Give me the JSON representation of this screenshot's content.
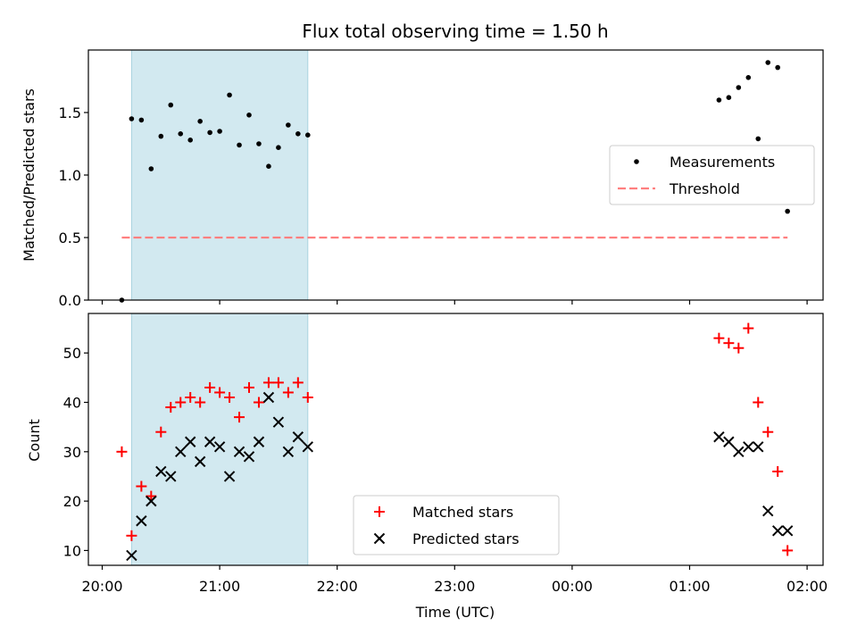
{
  "chart_data": [
    {
      "type": "scatter",
      "title": "Flux total observing time = 1.50 h",
      "xlabel": "",
      "ylabel": "Matched/Predicted stars",
      "ylim": [
        0,
        2.0
      ],
      "yticks": [
        0.0,
        0.5,
        1.0,
        1.5
      ],
      "ytick_labels": [
        "0.0",
        "0.5",
        "1.0",
        "1.5"
      ],
      "xticks": [
        "20:00",
        "21:00",
        "22:00",
        "23:00",
        "00:00",
        "01:00",
        "02:00"
      ],
      "xtick_labels_shown": false,
      "xlim": [
        "19:53",
        "02:06"
      ],
      "shaded_interval": [
        "20:15",
        "21:45"
      ],
      "shaded_color": "#d2e9f0",
      "series": [
        {
          "name": "Measurements",
          "marker": "dot",
          "color": "#000000",
          "points": [
            [
              "20:10",
              0.0
            ],
            [
              "20:15",
              1.45
            ],
            [
              "20:20",
              1.44
            ],
            [
              "20:25",
              1.05
            ],
            [
              "20:30",
              1.31
            ],
            [
              "20:35",
              1.56
            ],
            [
              "20:40",
              1.33
            ],
            [
              "20:45",
              1.28
            ],
            [
              "20:50",
              1.43
            ],
            [
              "20:55",
              1.34
            ],
            [
              "21:00",
              1.35
            ],
            [
              "21:05",
              1.64
            ],
            [
              "21:10",
              1.24
            ],
            [
              "21:15",
              1.48
            ],
            [
              "21:20",
              1.25
            ],
            [
              "21:25",
              1.07
            ],
            [
              "21:30",
              1.22
            ],
            [
              "21:35",
              1.4
            ],
            [
              "21:40",
              1.33
            ],
            [
              "21:45",
              1.32
            ],
            [
              "01:15",
              1.6
            ],
            [
              "01:20",
              1.62
            ],
            [
              "01:25",
              1.7
            ],
            [
              "01:30",
              1.78
            ],
            [
              "01:35",
              1.29
            ],
            [
              "01:40",
              1.9
            ],
            [
              "01:45",
              1.86
            ],
            [
              "01:50",
              0.71
            ]
          ]
        },
        {
          "name": "Threshold",
          "style": "dashed",
          "color": "#ff7f7f",
          "points": [
            [
              "20:10",
              0.5
            ],
            [
              "01:50",
              0.5
            ]
          ]
        }
      ],
      "legend": {
        "position": "center-right",
        "entries": [
          "Measurements",
          "Threshold"
        ]
      }
    },
    {
      "type": "scatter",
      "title": "",
      "xlabel": "Time (UTC)",
      "ylabel": "Count",
      "ylim": [
        7,
        58
      ],
      "yticks": [
        10,
        20,
        30,
        40,
        50
      ],
      "ytick_labels": [
        "10",
        "20",
        "30",
        "40",
        "50"
      ],
      "xticks": [
        "20:00",
        "21:00",
        "22:00",
        "23:00",
        "00:00",
        "01:00",
        "02:00"
      ],
      "xtick_labels": [
        "20:00",
        "21:00",
        "22:00",
        "23:00",
        "00:00",
        "01:00",
        "02:00"
      ],
      "xlim": [
        "19:53",
        "02:06"
      ],
      "shaded_interval": [
        "20:15",
        "21:45"
      ],
      "shaded_color": "#d2e9f0",
      "series": [
        {
          "name": "Matched stars",
          "marker": "plus",
          "color": "#ff0000",
          "points": [
            [
              "20:10",
              30
            ],
            [
              "20:15",
              13
            ],
            [
              "20:20",
              23
            ],
            [
              "20:25",
              21
            ],
            [
              "20:30",
              34
            ],
            [
              "20:35",
              39
            ],
            [
              "20:40",
              40
            ],
            [
              "20:45",
              41
            ],
            [
              "20:50",
              40
            ],
            [
              "20:55",
              43
            ],
            [
              "21:00",
              42
            ],
            [
              "21:05",
              41
            ],
            [
              "21:10",
              37
            ],
            [
              "21:15",
              43
            ],
            [
              "21:20",
              40
            ],
            [
              "21:25",
              44
            ],
            [
              "21:30",
              44
            ],
            [
              "21:35",
              42
            ],
            [
              "21:40",
              44
            ],
            [
              "21:45",
              41
            ],
            [
              "01:15",
              53
            ],
            [
              "01:20",
              52
            ],
            [
              "01:25",
              51
            ],
            [
              "01:30",
              55
            ],
            [
              "01:35",
              40
            ],
            [
              "01:40",
              34
            ],
            [
              "01:45",
              26
            ],
            [
              "01:50",
              10
            ]
          ]
        },
        {
          "name": "Predicted stars",
          "marker": "x",
          "color": "#000000",
          "points": [
            [
              "20:15",
              9
            ],
            [
              "20:20",
              16
            ],
            [
              "20:25",
              20
            ],
            [
              "20:30",
              26
            ],
            [
              "20:35",
              25
            ],
            [
              "20:40",
              30
            ],
            [
              "20:45",
              32
            ],
            [
              "20:50",
              28
            ],
            [
              "20:55",
              32
            ],
            [
              "21:00",
              31
            ],
            [
              "21:05",
              25
            ],
            [
              "21:10",
              30
            ],
            [
              "21:15",
              29
            ],
            [
              "21:20",
              32
            ],
            [
              "21:25",
              41
            ],
            [
              "21:30",
              36
            ],
            [
              "21:35",
              30
            ],
            [
              "21:40",
              33
            ],
            [
              "21:45",
              31
            ],
            [
              "01:15",
              33
            ],
            [
              "01:20",
              32
            ],
            [
              "01:25",
              30
            ],
            [
              "01:30",
              31
            ],
            [
              "01:35",
              31
            ],
            [
              "01:40",
              18
            ],
            [
              "01:45",
              14
            ],
            [
              "01:50",
              14
            ]
          ]
        }
      ],
      "legend": {
        "position": "lower-center",
        "entries": [
          "Matched stars",
          "Predicted stars"
        ]
      }
    }
  ]
}
